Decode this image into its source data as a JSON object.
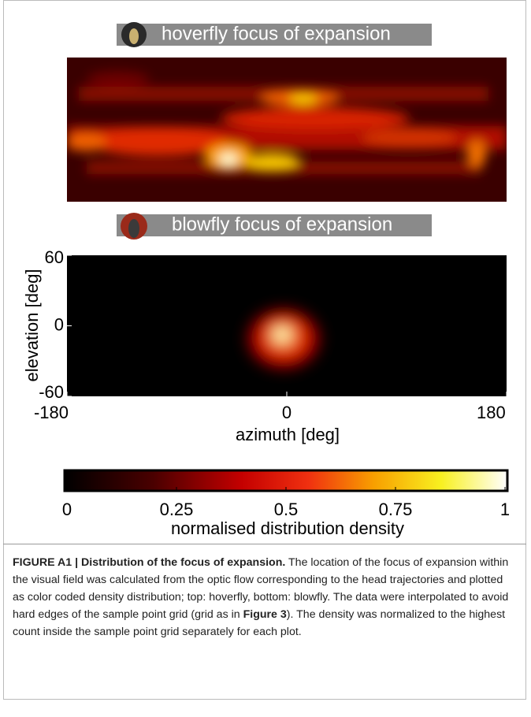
{
  "figure": {
    "panels": [
      {
        "title": "hoverfly focus of expansion"
      },
      {
        "title": "blowfly focus of expansion",
        "xlabel": "azimuth [deg]",
        "ylabel": "elevation [deg]",
        "xlim": [
          -180,
          180
        ],
        "ylim": [
          -60,
          60
        ],
        "xticks": [
          -180,
          0,
          180
        ],
        "yticks": [
          -60,
          0,
          60
        ]
      }
    ],
    "colorbar": {
      "label": "normalised distribution density",
      "lim": [
        0,
        1
      ],
      "ticks": [
        0,
        0.25,
        0.5,
        0.75,
        1
      ]
    }
  },
  "caption": {
    "label": "FIGURE A1 | Distribution of the focus of expansion.",
    "text_before": " The location of the focus of expansion within the visual field was calculated from the optic flow corresponding to the head trajectories and plotted as color coded density distribution; top: hoverfly, bottom: blowfly. The data were interpolated to avoid hard edges of the sample point grid (grid as in ",
    "ref": "Figure 3",
    "text_after": "). The density was normalized to the highest count inside the sample point grid separately for each plot."
  }
}
